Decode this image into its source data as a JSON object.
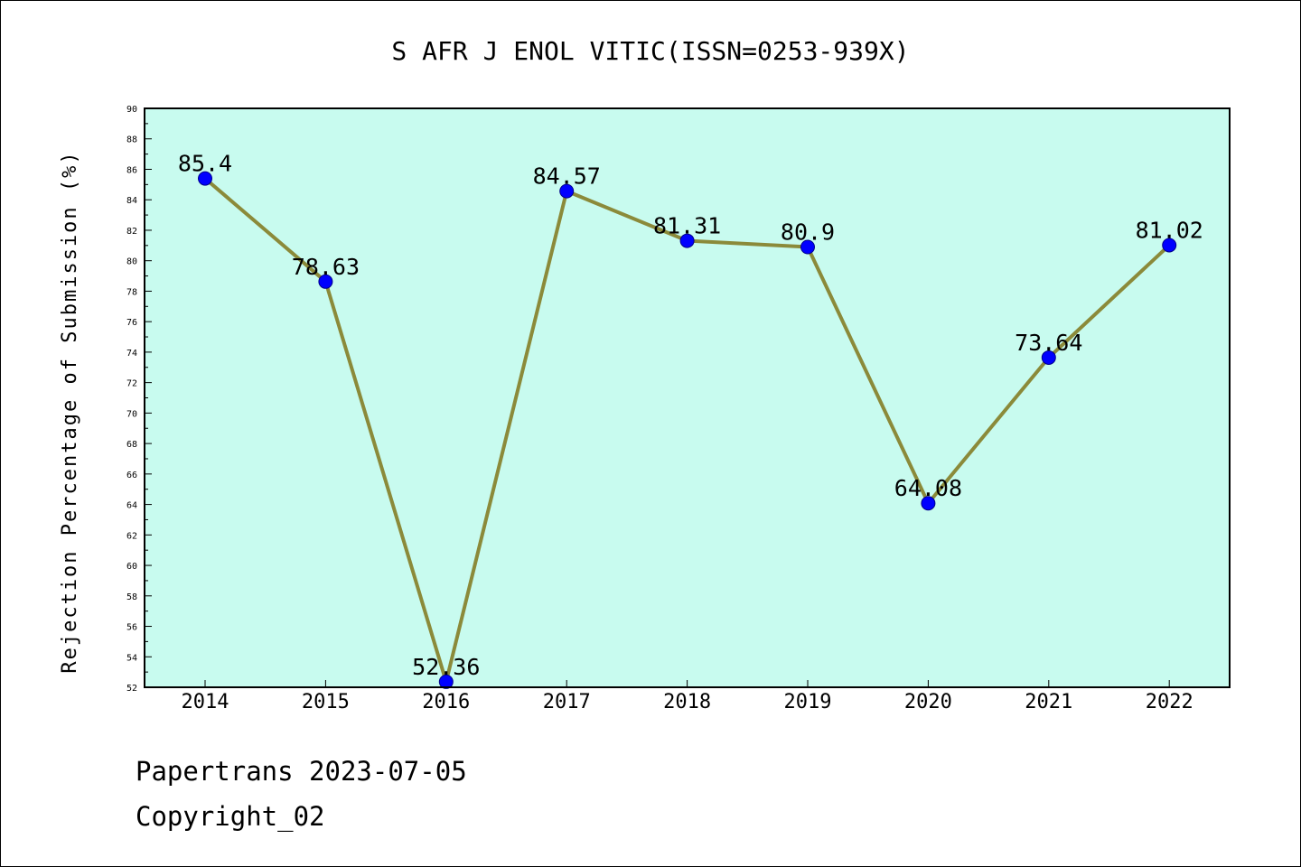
{
  "chart_data": {
    "type": "line",
    "title": "S AFR J ENOL VITIC(ISSN=0253-939X)",
    "xlabel": "",
    "ylabel": "Rejection Percentage of Submission (%)",
    "categories": [
      "2014",
      "2015",
      "2016",
      "2017",
      "2018",
      "2019",
      "2020",
      "2021",
      "2022"
    ],
    "values": [
      85.4,
      78.63,
      52.36,
      84.57,
      81.31,
      80.9,
      64.08,
      73.64,
      81.02
    ],
    "data_labels": [
      "85.4",
      "78.63",
      "52.36",
      "84.57",
      "81.31",
      "80.9",
      "64.08",
      "73.64",
      "81.02"
    ],
    "ylim": [
      52,
      90
    ],
    "yticks": [
      "52",
      "54",
      "56",
      "58",
      "60",
      "62",
      "64",
      "66",
      "68",
      "70",
      "72",
      "74",
      "76",
      "78",
      "80",
      "82",
      "84",
      "86",
      "88",
      "90"
    ],
    "grid": false,
    "legend": "none",
    "colors": {
      "plot_background": "#c8fbef",
      "line": "#8b8a3a",
      "marker": "#0000ff"
    }
  },
  "footer": {
    "line1": "Papertrans 2023-07-05",
    "line2": "Copyright_02"
  }
}
